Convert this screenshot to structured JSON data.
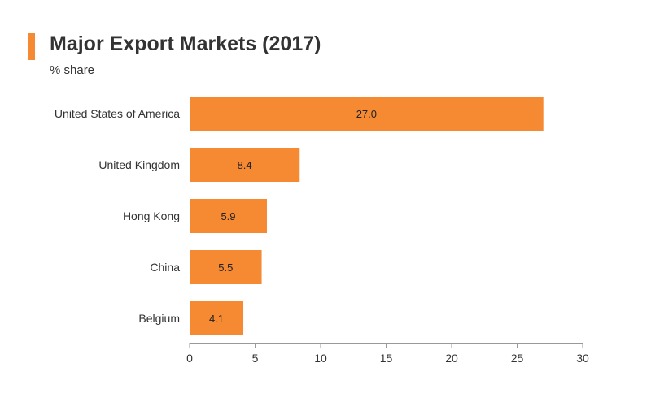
{
  "header": {
    "title": "Major Export Markets (2017)",
    "subtitle": "% share"
  },
  "colors": {
    "accent": "#f58a33",
    "bar": "#f58a33",
    "axis": "#999999",
    "text": "#333333"
  },
  "chart_data": {
    "type": "bar",
    "orientation": "horizontal",
    "title": "Major Export Markets (2017)",
    "subtitle": "% share",
    "categories": [
      "United States of America",
      "United Kingdom",
      "Hong Kong",
      "China",
      "Belgium"
    ],
    "values": [
      27.0,
      8.4,
      5.9,
      5.5,
      4.1
    ],
    "data_labels": [
      "27.0",
      "8.4",
      "5.9",
      "5.5",
      "4.1"
    ],
    "xlim": [
      0,
      30
    ],
    "xticks": [
      "0",
      "5",
      "10",
      "15",
      "20",
      "25",
      "30"
    ],
    "xtick_values": [
      0,
      5,
      10,
      15,
      20,
      25,
      30
    ],
    "grid": false,
    "legend": "none"
  }
}
